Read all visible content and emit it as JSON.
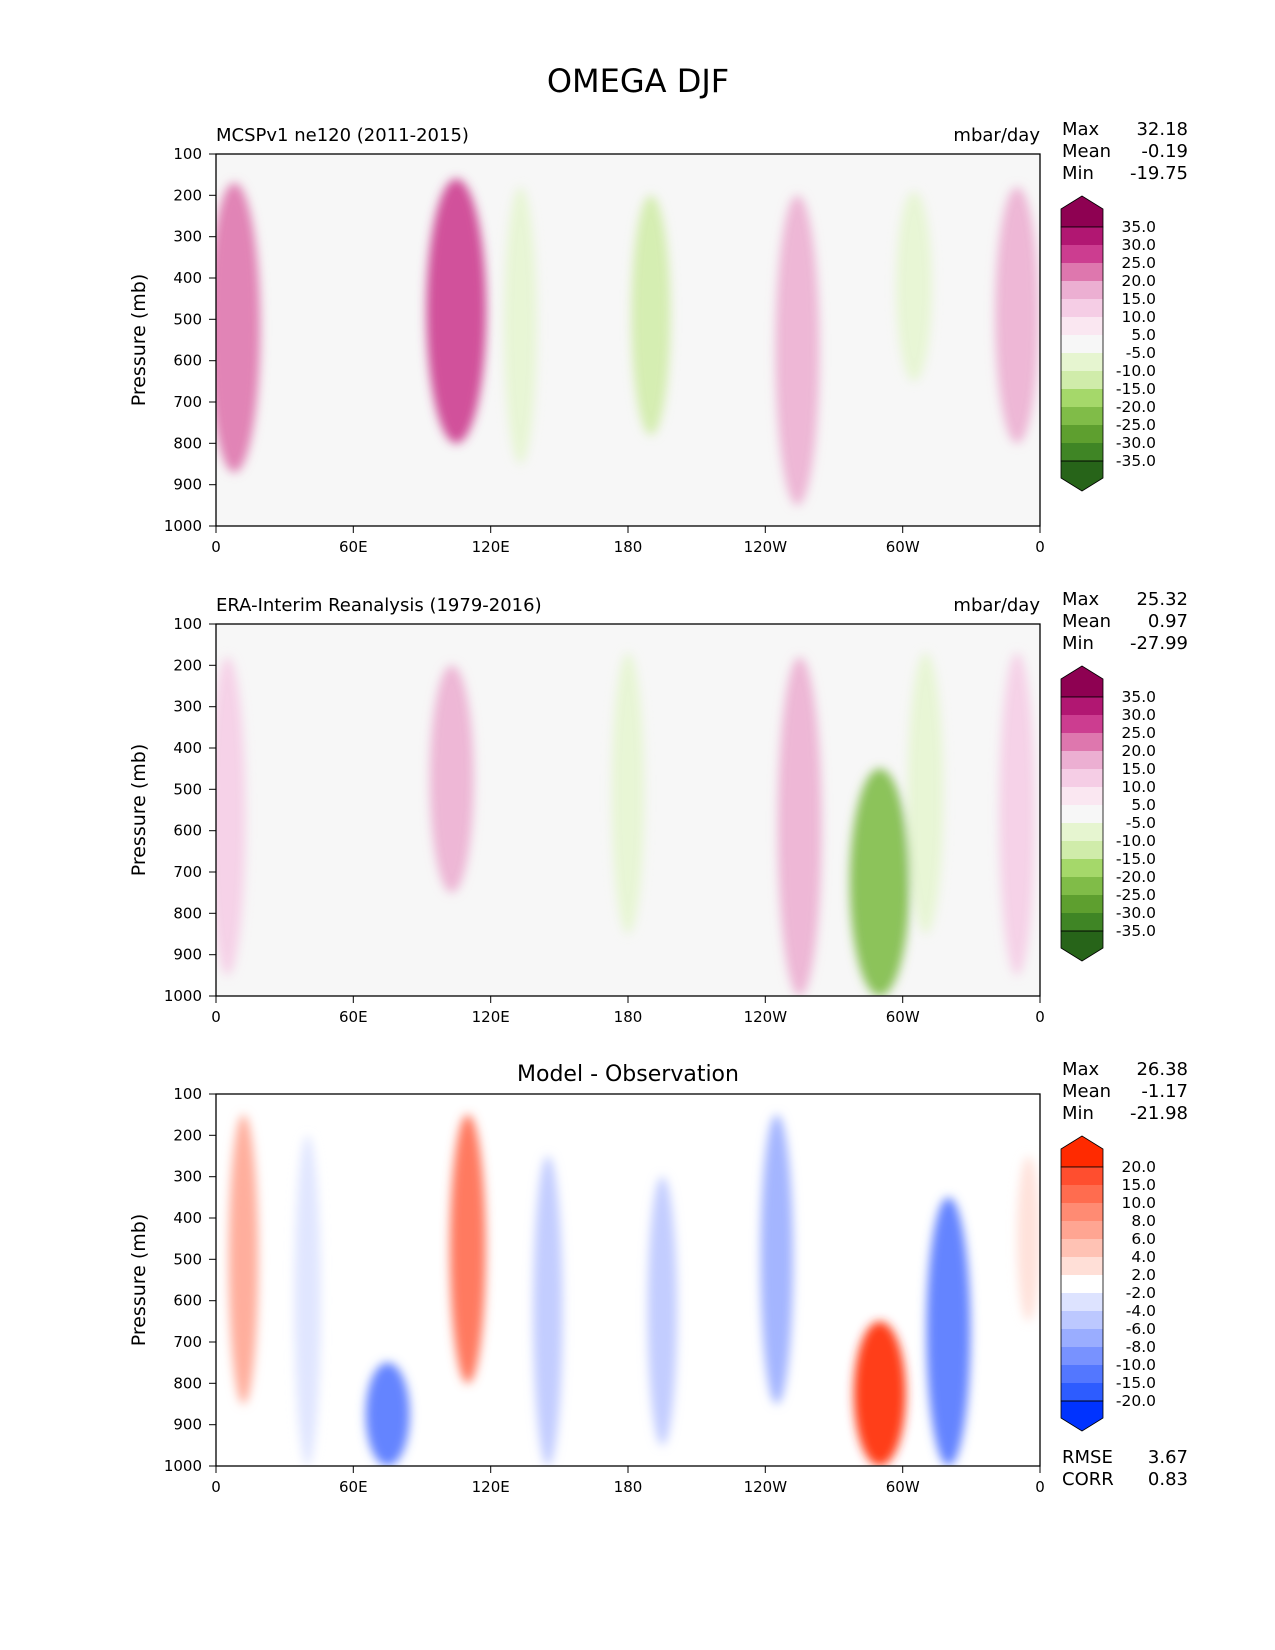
{
  "figure_title": "OMEGA DJF",
  "axis": {
    "ylabel": "Pressure (mb)",
    "yticks": [
      "100",
      "200",
      "300",
      "400",
      "500",
      "600",
      "700",
      "800",
      "900",
      "1000"
    ],
    "xticks": [
      "0",
      "60E",
      "120E",
      "180",
      "120W",
      "60W",
      "0"
    ]
  },
  "panels": [
    {
      "title": "MCSPv1 ne120 (2011-2015)",
      "units": "mbar/day",
      "stats": [
        {
          "label": "Max",
          "value": "32.18"
        },
        {
          "label": "Mean",
          "value": "-0.19"
        },
        {
          "label": "Min",
          "value": "-19.75"
        }
      ],
      "colorbar_labels": [
        "35.0",
        "30.0",
        "25.0",
        "20.0",
        "15.0",
        "10.0",
        "5.0",
        "-5.0",
        "-10.0",
        "-15.0",
        "-20.0",
        "-25.0",
        "-30.0",
        "-35.0"
      ],
      "colorbar_colors": [
        "#8e0152",
        "#b11772",
        "#cc3d90",
        "#de77ae",
        "#ecafd2",
        "#f5cde5",
        "#fae7f1",
        "#f7f7f7",
        "#e6f5d0",
        "#d0ecaa",
        "#a5d86a",
        "#80bc48",
        "#5e9f2f",
        "#3f8525",
        "#276419"
      ]
    },
    {
      "title": "ERA-Interim Reanalysis (1979-2016)",
      "units": "mbar/day",
      "stats": [
        {
          "label": "Max",
          "value": "25.32"
        },
        {
          "label": "Mean",
          "value": "0.97"
        },
        {
          "label": "Min",
          "value": "-27.99"
        }
      ],
      "colorbar_labels": [
        "35.0",
        "30.0",
        "25.0",
        "20.0",
        "15.0",
        "10.0",
        "5.0",
        "-5.0",
        "-10.0",
        "-15.0",
        "-20.0",
        "-25.0",
        "-30.0",
        "-35.0"
      ],
      "colorbar_colors": [
        "#8e0152",
        "#b11772",
        "#cc3d90",
        "#de77ae",
        "#ecafd2",
        "#f5cde5",
        "#fae7f1",
        "#f7f7f7",
        "#e6f5d0",
        "#d0ecaa",
        "#a5d86a",
        "#80bc48",
        "#5e9f2f",
        "#3f8525",
        "#276419"
      ]
    },
    {
      "title": "Model - Observation",
      "units": "",
      "stats": [
        {
          "label": "Max",
          "value": "26.38"
        },
        {
          "label": "Mean",
          "value": "-1.17"
        },
        {
          "label": "Min",
          "value": "-21.98"
        }
      ],
      "extra_stats": [
        {
          "label": "RMSE",
          "value": "3.67"
        },
        {
          "label": "CORR",
          "value": "0.83"
        }
      ],
      "colorbar_labels": [
        "20.0",
        "15.0",
        "10.0",
        "8.0",
        "6.0",
        "4.0",
        "2.0",
        "-2.0",
        "-4.0",
        "-6.0",
        "-8.0",
        "-10.0",
        "-15.0",
        "-20.0"
      ],
      "colorbar_colors": [
        "#ff2a00",
        "#ff4e2f",
        "#ff6c4f",
        "#ff8b73",
        "#ffa592",
        "#ffc2b4",
        "#ffdfd7",
        "#ffffff",
        "#dde3ff",
        "#bcc8ff",
        "#9aadff",
        "#7892ff",
        "#5377ff",
        "#2d5cff",
        "#0033ff"
      ]
    }
  ],
  "chart_data": [
    {
      "type": "heatmap",
      "title": "MCSPv1 ne120 (2011-2015)",
      "units": "mbar/day",
      "xlabel": "",
      "ylabel": "Pressure (mb)",
      "xlim": [
        0,
        360
      ],
      "ylim": [
        1000,
        100
      ],
      "stats": {
        "max": 32.18,
        "mean": -0.19,
        "min": -19.75
      },
      "levels": [
        -35,
        -30,
        -25,
        -20,
        -15,
        -10,
        -5,
        5,
        10,
        15,
        20,
        25,
        30,
        35
      ],
      "features": [
        {
          "lon": 8,
          "p_top": 170,
          "p_bot": 870,
          "value": 20
        },
        {
          "lon": 105,
          "p_top": 160,
          "p_bot": 800,
          "value": 25
        },
        {
          "lon": 190,
          "p_top": 200,
          "p_bot": 780,
          "value": -12
        },
        {
          "lon": 133,
          "p_top": 180,
          "p_bot": 850,
          "value": -8
        },
        {
          "lon": 254,
          "p_top": 200,
          "p_bot": 950,
          "value": 15
        },
        {
          "lon": 305,
          "p_top": 190,
          "p_bot": 650,
          "value": -10
        },
        {
          "lon": 350,
          "p_top": 180,
          "p_bot": 800,
          "value": 15
        }
      ]
    },
    {
      "type": "heatmap",
      "title": "ERA-Interim Reanalysis (1979-2016)",
      "units": "mbar/day",
      "xlabel": "",
      "ylabel": "Pressure (mb)",
      "xlim": [
        0,
        360
      ],
      "ylim": [
        1000,
        100
      ],
      "stats": {
        "max": 25.32,
        "mean": 0.97,
        "min": -27.99
      },
      "levels": [
        -35,
        -30,
        -25,
        -20,
        -15,
        -10,
        -5,
        5,
        10,
        15,
        20,
        25,
        30,
        35
      ],
      "features": [
        {
          "lon": 5,
          "p_top": 180,
          "p_bot": 950,
          "value": 10
        },
        {
          "lon": 103,
          "p_top": 200,
          "p_bot": 750,
          "value": 15
        },
        {
          "lon": 180,
          "p_top": 170,
          "p_bot": 850,
          "value": -8
        },
        {
          "lon": 255,
          "p_top": 180,
          "p_bot": 1000,
          "value": 15
        },
        {
          "lon": 290,
          "p_top": 450,
          "p_bot": 1000,
          "value": -25
        },
        {
          "lon": 310,
          "p_top": 170,
          "p_bot": 850,
          "value": -10
        },
        {
          "lon": 350,
          "p_top": 170,
          "p_bot": 950,
          "value": 10
        }
      ]
    },
    {
      "type": "heatmap",
      "title": "Model - Observation",
      "units": "",
      "xlabel": "",
      "ylabel": "Pressure (mb)",
      "xlim": [
        0,
        360
      ],
      "ylim": [
        1000,
        100
      ],
      "stats": {
        "max": 26.38,
        "mean": -1.17,
        "min": -21.98,
        "rmse": 3.67,
        "corr": 0.83
      },
      "levels": [
        -20,
        -15,
        -10,
        -8,
        -6,
        -4,
        -2,
        2,
        4,
        6,
        8,
        10,
        15,
        20
      ],
      "features": [
        {
          "lon": 12,
          "p_top": 150,
          "p_bot": 850,
          "value": 6
        },
        {
          "lon": 40,
          "p_top": 200,
          "p_bot": 1000,
          "value": -4
        },
        {
          "lon": 75,
          "p_top": 750,
          "p_bot": 1000,
          "value": -15
        },
        {
          "lon": 110,
          "p_top": 150,
          "p_bot": 800,
          "value": 10
        },
        {
          "lon": 145,
          "p_top": 250,
          "p_bot": 1000,
          "value": -6
        },
        {
          "lon": 195,
          "p_top": 300,
          "p_bot": 950,
          "value": -6
        },
        {
          "lon": 245,
          "p_top": 150,
          "p_bot": 850,
          "value": -8
        },
        {
          "lon": 290,
          "p_top": 650,
          "p_bot": 1000,
          "value": 20
        },
        {
          "lon": 320,
          "p_top": 350,
          "p_bot": 1000,
          "value": -15
        },
        {
          "lon": 355,
          "p_top": 250,
          "p_bot": 650,
          "value": 2
        }
      ]
    }
  ]
}
